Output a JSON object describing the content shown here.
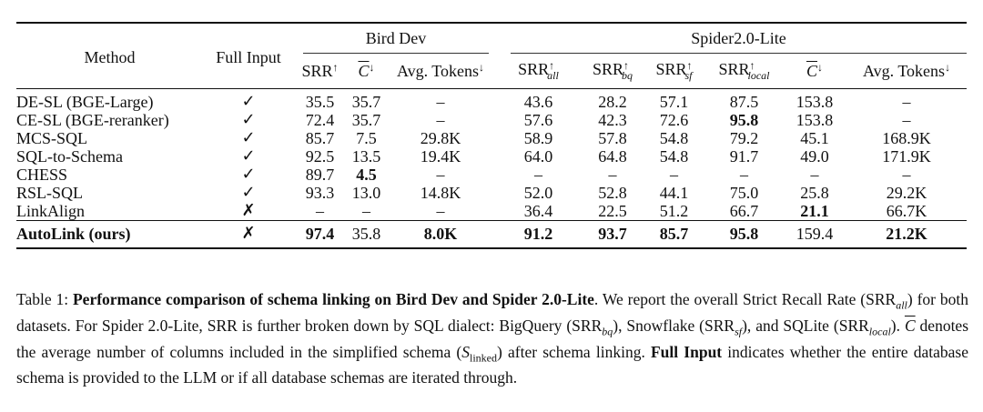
{
  "table": {
    "headers": {
      "method": "Method",
      "full_input": "Full Input",
      "bird": "Bird Dev",
      "spider": "Spider2.0-Lite",
      "srr": "SRR",
      "up": "↑",
      "down": "↓",
      "c": "C",
      "tokens": "Avg. Tokens",
      "all": "all",
      "bq": "bq",
      "sf": "sf",
      "local": "local"
    },
    "rows": [
      {
        "method": "DE-SL (BGE-Large)",
        "full": "✓",
        "cells": [
          "35.5",
          "35.7",
          "–",
          "43.6",
          "28.2",
          "57.1",
          "87.5",
          "153.8",
          "–"
        ],
        "bold": []
      },
      {
        "method": "CE-SL (BGE-reranker)",
        "full": "✓",
        "cells": [
          "72.4",
          "35.7",
          "–",
          "57.6",
          "42.3",
          "72.6",
          "95.8",
          "153.8",
          "–"
        ],
        "bold": [
          6
        ]
      },
      {
        "method": "MCS-SQL",
        "full": "✓",
        "cells": [
          "85.7",
          "7.5",
          "29.8K",
          "58.9",
          "57.8",
          "54.8",
          "79.2",
          "45.1",
          "168.9K"
        ],
        "bold": []
      },
      {
        "method": "SQL-to-Schema",
        "full": "✓",
        "cells": [
          "92.5",
          "13.5",
          "19.4K",
          "64.0",
          "64.8",
          "54.8",
          "91.7",
          "49.0",
          "171.9K"
        ],
        "bold": []
      },
      {
        "method": "CHESS",
        "full": "✓",
        "cells": [
          "89.7",
          "4.5",
          "–",
          "–",
          "–",
          "–",
          "–",
          "–",
          "–"
        ],
        "bold": [
          1
        ]
      },
      {
        "method": "RSL-SQL",
        "full": "✓",
        "cells": [
          "93.3",
          "13.0",
          "14.8K",
          "52.0",
          "52.8",
          "44.1",
          "75.0",
          "25.8",
          "29.2K"
        ],
        "bold": []
      },
      {
        "method": "LinkAlign",
        "full": "✗",
        "cells": [
          "–",
          "–",
          "–",
          "36.4",
          "22.5",
          "51.2",
          "66.7",
          "21.1",
          "66.7K"
        ],
        "bold": [
          7
        ]
      },
      {
        "method": "AutoLink (ours)",
        "full": "✗",
        "cells": [
          "97.4",
          "35.8",
          "8.0K",
          "91.2",
          "93.7",
          "85.7",
          "95.8",
          "159.4",
          "21.2K"
        ],
        "bold": [
          0,
          2,
          3,
          4,
          5,
          6,
          8
        ],
        "method_bold": true
      }
    ]
  },
  "caption": {
    "label": "Table 1: ",
    "bold1": "Performance comparison of schema linking on Bird Dev and Spider 2.0-Lite",
    "t1": ". We report the overall Strict Recall Rate (SRR",
    "s_all": "all",
    "t2": ") for both datasets. For Spider 2.0-Lite, SRR is further broken down by SQL dialect: BigQuery (SRR",
    "s_bq": "bq",
    "t3": "), Snowflake (SRR",
    "s_sf": "sf",
    "t4": "), and SQLite (SRR",
    "s_local": "local",
    "t5": "). ",
    "c": "C",
    "t6": " denotes the average number of columns included in the simplified schema (",
    "s": "S",
    "s_linked": "linked",
    "t7": ") after schema linking. ",
    "bold2": "Full Input",
    "t8": " indicates whether the entire database schema is provided to the LLM or if all database schemas are iterated through."
  }
}
